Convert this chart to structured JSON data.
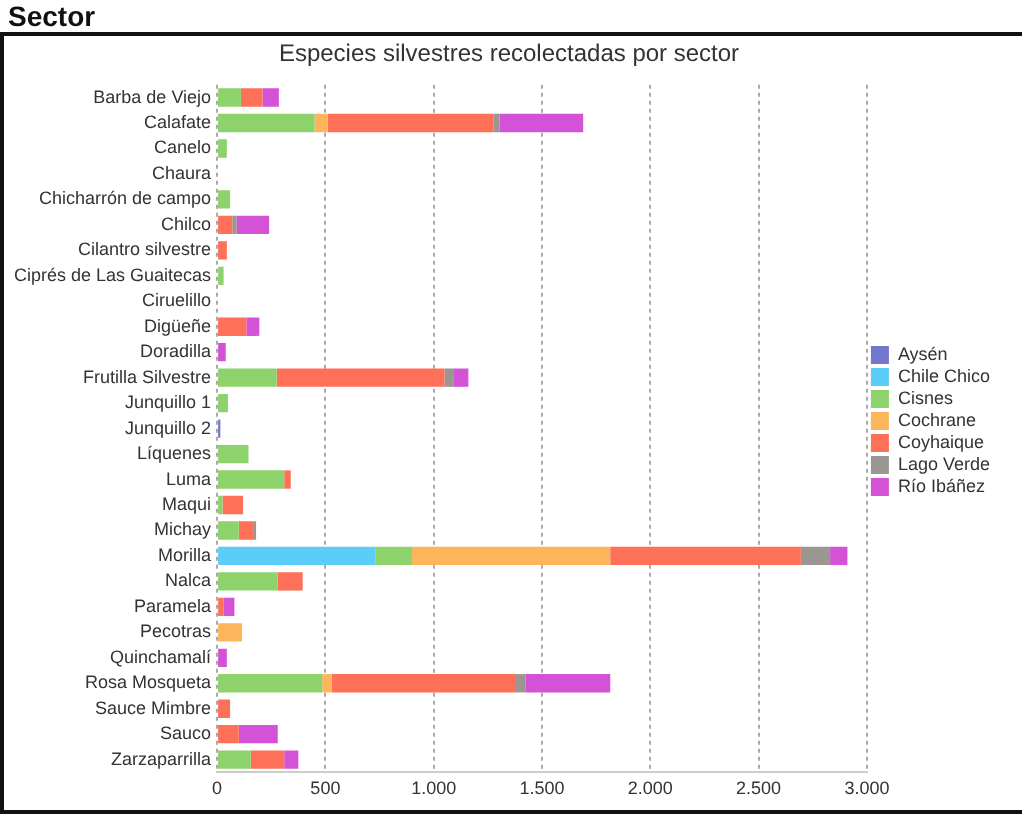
{
  "chart_data": {
    "type": "bar",
    "orientation": "horizontal",
    "stacked": true,
    "title": "Especies silvestres recolectadas por sector",
    "annotations": [
      "Sector"
    ],
    "categories": [
      "Barba de Viejo",
      "Calafate",
      "Canelo",
      "Chaura",
      "Chicharrón de campo",
      "Chilco",
      "Cilantro silvestre",
      "Ciprés de Las Guaitecas",
      "Ciruelillo",
      "Digüeñe",
      "Doradilla",
      "Frutilla Silvestre",
      "Junquillo 1",
      "Junquillo 2",
      "Líquenes",
      "Luma",
      "Maqui",
      "Michay",
      "Morilla",
      "Nalca",
      "Paramela",
      "Pecotras",
      "Quinchamalí",
      "Rosa Mosqueta",
      "Sauce Mimbre",
      "Sauco",
      "Zarzaparrilla"
    ],
    "series": [
      {
        "name": "Aysén",
        "color": "#7478cc",
        "values": [
          null,
          null,
          null,
          null,
          null,
          null,
          null,
          null,
          null,
          null,
          null,
          null,
          null,
          15,
          null,
          null,
          null,
          null,
          null,
          null,
          null,
          null,
          null,
          null,
          null,
          null,
          null
        ]
      },
      {
        "name": "Chile Chico",
        "color": "#5bcdf8",
        "values": [
          null,
          null,
          null,
          null,
          null,
          null,
          null,
          null,
          null,
          null,
          null,
          null,
          null,
          null,
          null,
          null,
          null,
          null,
          730,
          null,
          null,
          null,
          null,
          null,
          null,
          null,
          null
        ]
      },
      {
        "name": "Cisnes",
        "color": "#8ed26b",
        "values": [
          110,
          450,
          45,
          null,
          60,
          null,
          null,
          30,
          null,
          null,
          null,
          275,
          50,
          null,
          145,
          310,
          25,
          100,
          170,
          280,
          null,
          null,
          null,
          485,
          null,
          null,
          155
        ]
      },
      {
        "name": "Cochrane",
        "color": "#fdb55c",
        "values": [
          null,
          60,
          null,
          null,
          null,
          null,
          null,
          null,
          null,
          null,
          null,
          null,
          null,
          null,
          null,
          null,
          null,
          null,
          915,
          null,
          null,
          115,
          null,
          45,
          null,
          null,
          null
        ]
      },
      {
        "name": "Coyhaique",
        "color": "#ff7058",
        "values": [
          100,
          765,
          null,
          null,
          null,
          70,
          45,
          null,
          null,
          135,
          null,
          775,
          null,
          null,
          null,
          30,
          95,
          70,
          880,
          115,
          30,
          null,
          null,
          850,
          60,
          100,
          155
        ]
      },
      {
        "name": "Lago Verde",
        "color": "#9b9691",
        "values": [
          null,
          30,
          null,
          null,
          null,
          20,
          null,
          null,
          null,
          null,
          null,
          40,
          null,
          null,
          null,
          null,
          null,
          10,
          135,
          null,
          null,
          null,
          null,
          45,
          null,
          null,
          null
        ]
      },
      {
        "name": "Río Ibáñez",
        "color": "#d452d6",
        "values": [
          75,
          385,
          null,
          null,
          null,
          150,
          null,
          null,
          null,
          60,
          40,
          70,
          null,
          null,
          null,
          null,
          null,
          null,
          80,
          null,
          50,
          null,
          45,
          390,
          null,
          180,
          65
        ]
      }
    ],
    "xlim": [
      0,
      3000
    ],
    "xticks": [
      0,
      500,
      {
        "value": 1000,
        "label": "1.000"
      },
      {
        "value": 1500,
        "label": "1.500"
      },
      {
        "value": 2000,
        "label": "2.000"
      },
      {
        "value": 2500,
        "label": "2.500"
      },
      {
        "value": 3000,
        "label": "3.000"
      }
    ],
    "grid": "x",
    "legend": "right"
  }
}
